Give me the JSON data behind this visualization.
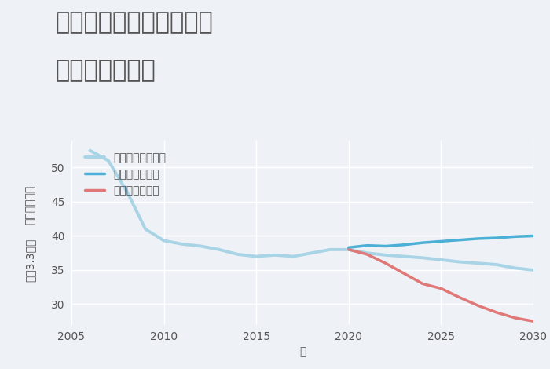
{
  "title_line1": "奈良県奈良市窪之庄町の",
  "title_line2": "土地の価格推移",
  "xlabel": "年",
  "ylabel_top": "単価（万円）",
  "ylabel_bottom": "坪（3.3㎡）",
  "background_color": "#eef2f7",
  "plot_background_color": "#eef2f7",
  "xlim": [
    2005,
    2030
  ],
  "ylim": [
    27,
    54
  ],
  "yticks": [
    30,
    35,
    40,
    45,
    50
  ],
  "xticks": [
    2005,
    2010,
    2015,
    2020,
    2025,
    2030
  ],
  "good_scenario": {
    "label": "グッドシナリオ",
    "color": "#4bafd6",
    "linewidth": 2.5,
    "x": [
      2020,
      2021,
      2022,
      2023,
      2024,
      2025,
      2026,
      2027,
      2028,
      2029,
      2030
    ],
    "y": [
      38.3,
      38.6,
      38.5,
      38.7,
      39.0,
      39.2,
      39.4,
      39.6,
      39.7,
      39.9,
      40.0
    ]
  },
  "bad_scenario": {
    "label": "バッドシナリオ",
    "color": "#e07878",
    "linewidth": 2.5,
    "x": [
      2020,
      2021,
      2022,
      2023,
      2024,
      2025,
      2026,
      2027,
      2028,
      2029,
      2030
    ],
    "y": [
      38.0,
      37.3,
      36.0,
      34.5,
      33.0,
      32.3,
      31.0,
      29.8,
      28.8,
      28.0,
      27.5
    ]
  },
  "normal_scenario": {
    "label": "ノーマルシナリオ",
    "color": "#a8d4e6",
    "linewidth": 2.8,
    "x": [
      2006,
      2007,
      2008,
      2009,
      2010,
      2011,
      2012,
      2013,
      2014,
      2015,
      2016,
      2017,
      2018,
      2019,
      2020,
      2021,
      2022,
      2023,
      2024,
      2025,
      2026,
      2027,
      2028,
      2029,
      2030
    ],
    "y": [
      52.5,
      51.0,
      46.5,
      41.0,
      39.3,
      38.8,
      38.5,
      38.0,
      37.3,
      37.0,
      37.2,
      37.0,
      37.5,
      38.0,
      38.0,
      37.5,
      37.2,
      37.0,
      36.8,
      36.5,
      36.2,
      36.0,
      35.8,
      35.3,
      35.0
    ]
  },
  "title_fontsize": 22,
  "axis_label_fontsize": 10,
  "tick_fontsize": 10,
  "legend_fontsize": 10
}
